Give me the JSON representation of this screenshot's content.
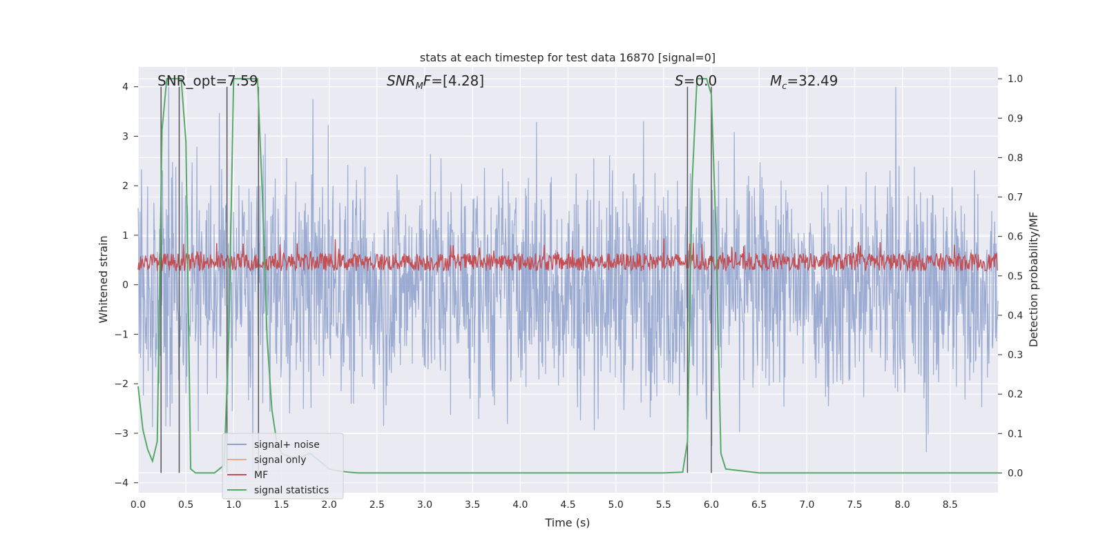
{
  "chart_data": {
    "type": "line",
    "title": "stats at each timestep for test data 16870 [signal=0]",
    "xlabel": "Time (s)",
    "ylabel_left": "Whitened strain",
    "ylabel_right": "Detection probability/MF",
    "xlim": [
      0.0,
      9.0
    ],
    "ylim_left": [
      -4.2,
      4.4
    ],
    "ylim_right": [
      -0.05,
      1.03
    ],
    "x_ticks": [
      "0.0",
      "0.5",
      "1.0",
      "1.5",
      "2.0",
      "2.5",
      "3.0",
      "3.5",
      "4.0",
      "4.5",
      "5.0",
      "5.5",
      "6.0",
      "6.5",
      "7.0",
      "7.5",
      "8.0",
      "8.5"
    ],
    "y_ticks_left": [
      "−4",
      "−3",
      "−2",
      "−1",
      "0",
      "1",
      "2",
      "3",
      "4"
    ],
    "y_ticks_right": [
      "0.0",
      "0.1",
      "0.2",
      "0.3",
      "0.4",
      "0.5",
      "0.6",
      "0.7",
      "0.8",
      "0.9",
      "1.0"
    ],
    "annotations": {
      "snr_opt": "SNR_opt=7.59",
      "snr_mf": "=[4.28]",
      "snr_mf_label": "SNR",
      "snr_mf_sub": "M",
      "snr_mf_f": "F",
      "s_label": "S",
      "s_value": "=0.0",
      "mc_label": "M",
      "mc_sub": "c",
      "mc_value": "=32.49"
    },
    "legend": {
      "position": "lower-left",
      "entries": [
        {
          "label": "signal+ noise",
          "color": "#8da0cb"
        },
        {
          "label": "signal only",
          "color": "#f2a98a"
        },
        {
          "label": "MF",
          "color": "#c44e52"
        },
        {
          "label": "signal statistics",
          "color": "#55a868"
        }
      ]
    },
    "series": [
      {
        "name": "signal+ noise",
        "axis": "left",
        "description": "dense noise trace, approx ±3.8"
      },
      {
        "name": "MF",
        "axis": "right",
        "description": "noisy trace around 0.52–0.55 on right axis"
      },
      {
        "name": "signal statistics",
        "axis": "right",
        "x": [
          0.0,
          0.05,
          0.1,
          0.15,
          0.2,
          0.25,
          0.3,
          0.35,
          0.4,
          0.45,
          0.5,
          0.55,
          0.6,
          0.65,
          0.7,
          0.75,
          0.8,
          0.85,
          0.9,
          0.95,
          1.0,
          1.05,
          1.1,
          1.15,
          1.2,
          1.25,
          1.3,
          1.35,
          1.4,
          1.45,
          1.5,
          1.6,
          1.7,
          1.8,
          1.9,
          2.0,
          2.1,
          2.2,
          2.3,
          3.0,
          4.0,
          5.0,
          5.5,
          5.7,
          5.75,
          5.8,
          5.85,
          5.9,
          5.95,
          6.0,
          6.05,
          6.1,
          6.15,
          6.5,
          7.0,
          8.0,
          9.0
        ],
        "y": [
          0.22,
          0.11,
          0.06,
          0.03,
          0.08,
          0.87,
          1.0,
          1.0,
          1.0,
          1.0,
          0.84,
          0.01,
          0.0,
          0.0,
          0.0,
          0.0,
          0.0,
          0.01,
          0.02,
          0.35,
          1.0,
          1.0,
          1.0,
          1.0,
          1.0,
          1.0,
          0.71,
          0.34,
          0.16,
          0.08,
          0.05,
          0.04,
          0.04,
          0.05,
          0.03,
          0.01,
          0.005,
          0.002,
          0.0,
          0.0,
          0.0,
          0.0,
          0.0,
          0.002,
          0.08,
          0.74,
          1.0,
          1.0,
          1.0,
          0.96,
          0.6,
          0.05,
          0.01,
          0.0,
          0.0,
          0.0,
          0.0
        ]
      },
      {
        "name": "signal only",
        "axis": "left",
        "description": "not visible"
      }
    ],
    "vertical_markers": [
      0.24,
      0.43,
      0.93,
      1.26,
      5.75,
      6.0
    ],
    "colors": {
      "background": "#eaeaf2",
      "grid": "#ffffff",
      "noise": "#8da0cb",
      "mf": "#c44e52",
      "stats": "#55a868",
      "markers": "#555555"
    }
  }
}
